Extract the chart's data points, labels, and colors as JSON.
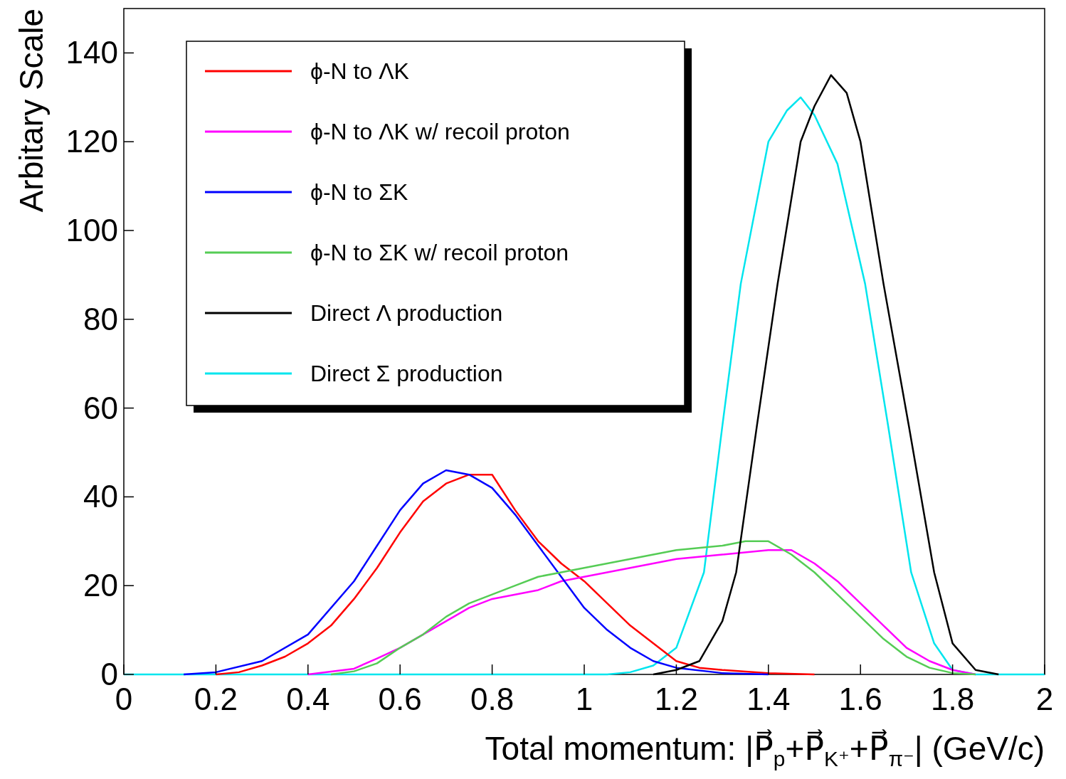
{
  "chart_data": {
    "type": "line",
    "xlabel": "Total momentum: |P⃗$_{p}$+P⃗$_{K⁺}$+P⃗$_{π⁻}$| (GeV/c)",
    "ylabel": "Arbitary Scale",
    "xlim": [
      0,
      2
    ],
    "ylim": [
      0,
      150
    ],
    "xticks": [
      0,
      0.2,
      0.4,
      0.6,
      0.8,
      1,
      1.2,
      1.4,
      1.6,
      1.8,
      2
    ],
    "yticks": [
      0,
      20,
      40,
      60,
      80,
      100,
      120,
      140
    ],
    "grid": false,
    "legend": "top left",
    "marker": "none",
    "line_style": "solid",
    "series": [
      {
        "name": "ϕ-N to ΛK",
        "color": "#ff0000",
        "x": [
          0.2,
          0.25,
          0.3,
          0.35,
          0.4,
          0.45,
          0.5,
          0.55,
          0.6,
          0.65,
          0.7,
          0.75,
          0.8,
          0.85,
          0.9,
          0.95,
          1.0,
          1.05,
          1.1,
          1.15,
          1.2,
          1.25,
          1.3,
          1.4,
          1.5
        ],
        "values": [
          0,
          0.5,
          2,
          4,
          7,
          11,
          17,
          24,
          32,
          39,
          43,
          45,
          45,
          37,
          30,
          25,
          21,
          16,
          11,
          7,
          3,
          1.5,
          1,
          0.3,
          0
        ]
      },
      {
        "name": "ϕ-N to ΛK w/ recoil proton",
        "color": "#ff00ff",
        "x": [
          0.4,
          0.5,
          0.55,
          0.6,
          0.65,
          0.7,
          0.75,
          0.8,
          0.85,
          0.9,
          0.95,
          1.0,
          1.1,
          1.2,
          1.3,
          1.4,
          1.45,
          1.5,
          1.55,
          1.6,
          1.65,
          1.7,
          1.75,
          1.8,
          1.85
        ],
        "values": [
          0,
          1.3,
          3.6,
          6,
          9,
          12,
          15,
          17,
          18,
          19,
          21,
          22,
          24,
          26,
          27,
          28,
          28,
          25,
          21,
          16,
          11,
          6,
          3,
          1,
          0
        ]
      },
      {
        "name": "ϕ-N to ΣK",
        "color": "#0000ff",
        "x": [
          0.13,
          0.2,
          0.3,
          0.4,
          0.5,
          0.55,
          0.6,
          0.65,
          0.7,
          0.75,
          0.8,
          0.85,
          0.9,
          0.95,
          1.0,
          1.05,
          1.1,
          1.15,
          1.2,
          1.3,
          1.4
        ],
        "values": [
          0,
          0.5,
          3,
          9,
          21,
          29,
          37,
          43,
          46,
          45,
          42,
          36,
          29,
          22,
          15,
          10,
          6,
          3,
          1.5,
          0.3,
          0
        ]
      },
      {
        "name": "ϕ-N to ΣK w/ recoil proton",
        "color": "#55cc55",
        "x": [
          0.45,
          0.5,
          0.55,
          0.6,
          0.65,
          0.7,
          0.75,
          0.8,
          0.85,
          0.9,
          0.95,
          1.0,
          1.1,
          1.2,
          1.3,
          1.35,
          1.4,
          1.45,
          1.5,
          1.55,
          1.6,
          1.65,
          1.7,
          1.75,
          1.8,
          1.85
        ],
        "values": [
          0,
          0.7,
          2.5,
          6,
          9,
          13,
          16,
          18,
          20,
          22,
          23,
          24,
          26,
          28,
          29,
          30,
          30,
          27,
          23,
          18,
          13,
          8,
          4,
          1.5,
          0.3,
          0
        ]
      },
      {
        "name": "Direct Λ production",
        "color": "#000000",
        "x": [
          1.15,
          1.2,
          1.25,
          1.3,
          1.33,
          1.375,
          1.42,
          1.47,
          1.5,
          1.536,
          1.57,
          1.6,
          1.65,
          1.705,
          1.76,
          1.8,
          1.85,
          1.9
        ],
        "values": [
          0,
          1,
          3,
          12,
          23,
          56,
          88,
          120,
          128,
          135,
          131,
          120,
          88,
          56,
          23,
          7,
          1,
          0
        ]
      },
      {
        "name": "Direct Σ production",
        "color": "#00e5ee",
        "x": [
          0,
          1.05,
          1.1,
          1.15,
          1.2,
          1.26,
          1.3,
          1.34,
          1.4,
          1.44,
          1.47,
          1.5,
          1.55,
          1.61,
          1.66,
          1.71,
          1.76,
          1.8,
          1.85,
          2
        ],
        "values": [
          0,
          0,
          0.5,
          2,
          6,
          23,
          56,
          88,
          120,
          127,
          130,
          126,
          115,
          88,
          56,
          23,
          7,
          1,
          0,
          0
        ]
      }
    ]
  }
}
